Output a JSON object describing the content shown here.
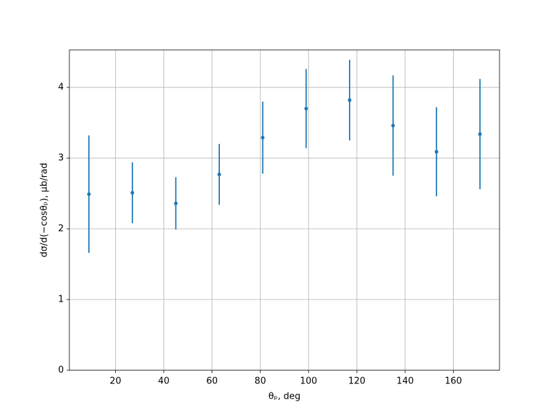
{
  "chart_data": {
    "type": "errorbar",
    "xlabel": "θₚ, deg",
    "ylabel": "dσ/d(−cosθₚ), μb/rad",
    "x": [
      9,
      27,
      45,
      63,
      81,
      99,
      117,
      135,
      153,
      171
    ],
    "series": [
      {
        "color": "#1f77b4",
        "values": [
          2.49,
          2.51,
          2.36,
          2.77,
          3.29,
          3.7,
          3.82,
          3.46,
          3.09,
          3.34
        ],
        "errors": [
          0.83,
          0.43,
          0.37,
          0.43,
          0.51,
          0.56,
          0.57,
          0.71,
          0.63,
          0.78
        ]
      }
    ],
    "xlim": [
      0.9,
      179.1
    ],
    "xticks": [
      20,
      40,
      60,
      80,
      100,
      120,
      140,
      160
    ],
    "ylim": [
      0,
      4.53
    ],
    "yticks": [
      0,
      1,
      2,
      3,
      4
    ],
    "grid": true
  }
}
